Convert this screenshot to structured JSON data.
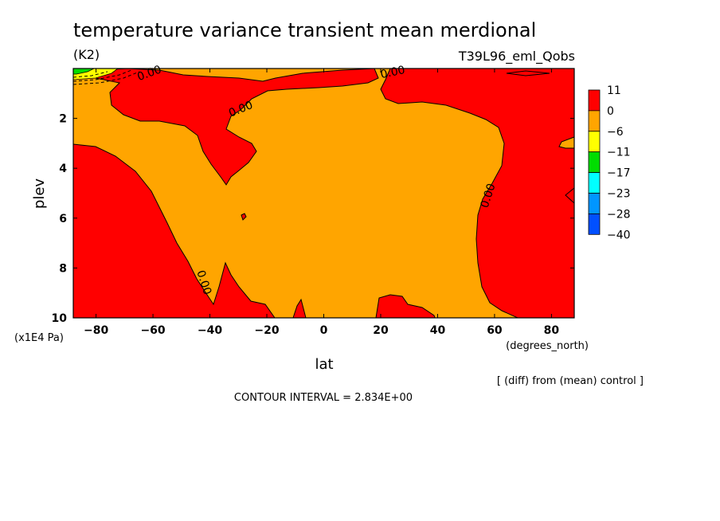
{
  "chart_data": {
    "type": "contour",
    "title": "temperature variance transient mean merdional",
    "units": "(K2)",
    "experiment": "T39L96_eml_Qobs",
    "xlabel": "lat",
    "x_units": "(degrees_north)",
    "ylabel": "plev",
    "y_units": "(x1E4 Pa)",
    "xlim": [
      -88,
      88
    ],
    "ylim": [
      10,
      0
    ],
    "x_ticks": [
      -80,
      -60,
      -40,
      -20,
      0,
      20,
      40,
      60,
      80
    ],
    "x_tick_labels": [
      "−80",
      "−60",
      "−40",
      "−20",
      "0",
      "20",
      "40",
      "60",
      "80"
    ],
    "y_ticks": [
      2,
      4,
      6,
      8,
      10
    ],
    "y_tick_labels": [
      "2",
      "4",
      "6",
      "8",
      "10"
    ],
    "contour_labels": [
      "0.00",
      "0.00",
      "0.00",
      "0.00",
      "0.00"
    ],
    "colorbar": {
      "levels": [
        "11",
        "0",
        "−6",
        "−11",
        "−17",
        "−23",
        "−28",
        "−40"
      ],
      "colors": [
        "#ff0000",
        "#ffa500",
        "#ffff00",
        "#00dd00",
        "#00ffff",
        "#0096ff",
        "#0050ff"
      ]
    },
    "note": "[ (diff) from (mean) control ]",
    "contour_interval": "CONTOUR INTERVAL = 2.834E+00"
  }
}
